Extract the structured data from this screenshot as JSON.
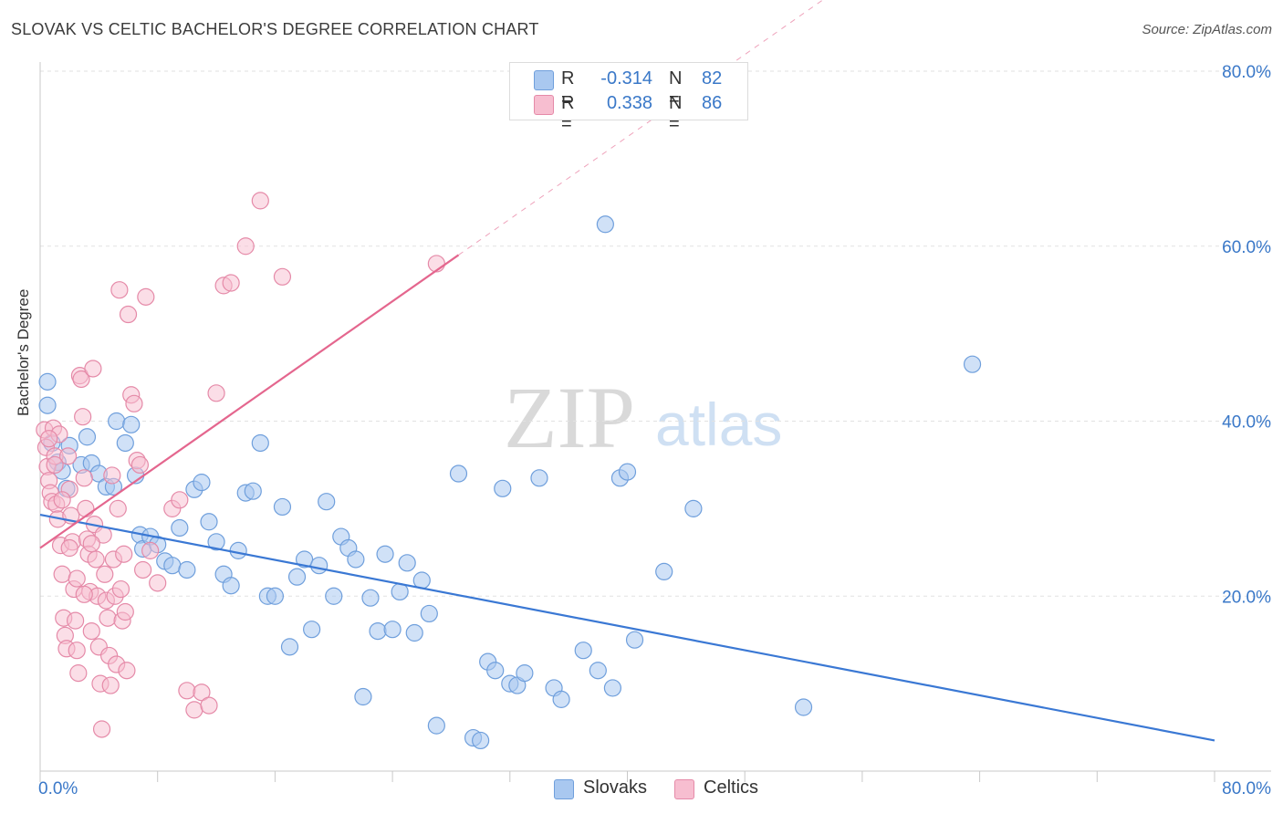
{
  "title": "SLOVAK VS CELTIC BACHELOR'S DEGREE CORRELATION CHART",
  "source": "Source: ZipAtlas.com",
  "watermark": {
    "part1": "ZIP",
    "part2": "atlas"
  },
  "legend": {
    "rows": [
      {
        "r_label": "R =",
        "r_value": "-0.314",
        "n_label": "N =",
        "n_value": "82",
        "color": "#a9c8f0",
        "border": "#6f9fdc"
      },
      {
        "r_label": "R =",
        "r_value": "0.338",
        "n_label": "N =",
        "n_value": "86",
        "color": "#f7bed0",
        "border": "#e58aa8"
      }
    ],
    "bottom": [
      {
        "label": "Slovaks",
        "color": "#a9c8f0",
        "border": "#6f9fdc"
      },
      {
        "label": "Celtics",
        "color": "#f7bed0",
        "border": "#e58aa8"
      }
    ]
  },
  "chart_data": {
    "type": "scatter",
    "ylabel": "Bachelor's Degree",
    "xlabel": "",
    "xlim": [
      0,
      80
    ],
    "ylim": [
      0,
      80
    ],
    "x_ticks": [
      {
        "value": 0,
        "label": "0.0%"
      },
      {
        "value": 80,
        "label": "80.0%"
      }
    ],
    "y_ticks": [
      {
        "value": 20,
        "label": "20.0%"
      },
      {
        "value": 40,
        "label": "40.0%"
      },
      {
        "value": 60,
        "label": "60.0%"
      },
      {
        "value": 80,
        "label": "80.0%"
      }
    ],
    "grid": "horizontal dashed",
    "series": [
      {
        "name": "Slovaks",
        "color": "#3a78d4",
        "fill": "rgba(169,200,240,0.55)",
        "stroke": "#6f9fdc",
        "trend": {
          "x": [
            0,
            80
          ],
          "y": [
            29.3,
            3.5
          ],
          "solid_until": 80
        },
        "points": [
          [
            0.5,
            44.5
          ],
          [
            0.5,
            41.8
          ],
          [
            0.8,
            37.5
          ],
          [
            1.2,
            35.3
          ],
          [
            1.5,
            34.3
          ],
          [
            1.8,
            32.3
          ],
          [
            2.0,
            37.2
          ],
          [
            3.2,
            38.2
          ],
          [
            2.8,
            35.0
          ],
          [
            3.5,
            35.2
          ],
          [
            4.0,
            34.0
          ],
          [
            4.5,
            32.5
          ],
          [
            5.0,
            32.5
          ],
          [
            5.2,
            40.0
          ],
          [
            5.8,
            37.5
          ],
          [
            6.2,
            39.6
          ],
          [
            6.5,
            33.8
          ],
          [
            6.8,
            27.0
          ],
          [
            7.0,
            25.4
          ],
          [
            7.5,
            26.8
          ],
          [
            8.0,
            25.9
          ],
          [
            8.5,
            24.0
          ],
          [
            9.0,
            23.5
          ],
          [
            9.5,
            27.8
          ],
          [
            10.0,
            23.0
          ],
          [
            10.5,
            32.2
          ],
          [
            11.0,
            33.0
          ],
          [
            11.5,
            28.5
          ],
          [
            12.0,
            26.2
          ],
          [
            12.5,
            22.5
          ],
          [
            13.0,
            21.2
          ],
          [
            13.5,
            25.2
          ],
          [
            14.0,
            31.8
          ],
          [
            14.5,
            32.0
          ],
          [
            15.0,
            37.5
          ],
          [
            15.5,
            20.0
          ],
          [
            16.0,
            20.0
          ],
          [
            16.5,
            30.2
          ],
          [
            17.0,
            14.2
          ],
          [
            17.5,
            22.2
          ],
          [
            18.0,
            24.2
          ],
          [
            18.5,
            16.2
          ],
          [
            19.0,
            23.5
          ],
          [
            19.5,
            30.8
          ],
          [
            20.0,
            20.0
          ],
          [
            20.5,
            26.8
          ],
          [
            21.0,
            25.5
          ],
          [
            21.5,
            24.2
          ],
          [
            22.0,
            8.5
          ],
          [
            22.5,
            19.8
          ],
          [
            23.0,
            16.0
          ],
          [
            23.5,
            24.8
          ],
          [
            24.0,
            16.2
          ],
          [
            24.5,
            20.5
          ],
          [
            25.0,
            23.8
          ],
          [
            25.5,
            15.8
          ],
          [
            26.0,
            21.8
          ],
          [
            26.5,
            18.0
          ],
          [
            27.0,
            5.2
          ],
          [
            28.5,
            34.0
          ],
          [
            29.5,
            3.8
          ],
          [
            30.0,
            3.5
          ],
          [
            30.5,
            12.5
          ],
          [
            31.0,
            11.5
          ],
          [
            31.5,
            32.3
          ],
          [
            32.0,
            10.0
          ],
          [
            32.5,
            9.8
          ],
          [
            33.0,
            11.2
          ],
          [
            34.0,
            33.5
          ],
          [
            35.0,
            9.5
          ],
          [
            35.5,
            8.2
          ],
          [
            37.0,
            13.8
          ],
          [
            38.0,
            11.5
          ],
          [
            38.5,
            62.5
          ],
          [
            39.0,
            9.5
          ],
          [
            39.5,
            33.5
          ],
          [
            40.0,
            34.2
          ],
          [
            40.5,
            15.0
          ],
          [
            42.5,
            22.8
          ],
          [
            44.5,
            30.0
          ],
          [
            52.0,
            7.3
          ],
          [
            63.5,
            46.5
          ]
        ]
      },
      {
        "name": "Celtics",
        "color": "#e4668e",
        "fill": "rgba(247,190,208,0.5)",
        "stroke": "#e58aa8",
        "trend": {
          "x": [
            0,
            80
          ],
          "y": [
            25.5,
            119.5
          ],
          "solid_until": 28.5
        },
        "points": [
          [
            0.3,
            39.0
          ],
          [
            0.4,
            37.0
          ],
          [
            0.5,
            34.8
          ],
          [
            0.6,
            33.2
          ],
          [
            0.7,
            31.8
          ],
          [
            0.8,
            30.8
          ],
          [
            0.9,
            39.2
          ],
          [
            1.0,
            36.0
          ],
          [
            1.1,
            30.5
          ],
          [
            1.2,
            28.8
          ],
          [
            1.3,
            38.5
          ],
          [
            1.4,
            25.8
          ],
          [
            1.5,
            22.5
          ],
          [
            1.6,
            17.5
          ],
          [
            1.7,
            15.5
          ],
          [
            1.8,
            14.0
          ],
          [
            1.9,
            36.0
          ],
          [
            2.0,
            32.2
          ],
          [
            2.1,
            29.2
          ],
          [
            2.2,
            26.2
          ],
          [
            2.3,
            20.8
          ],
          [
            2.4,
            17.2
          ],
          [
            2.5,
            13.8
          ],
          [
            2.6,
            11.2
          ],
          [
            2.7,
            45.2
          ],
          [
            2.8,
            44.8
          ],
          [
            2.9,
            40.5
          ],
          [
            3.0,
            33.5
          ],
          [
            3.1,
            30.0
          ],
          [
            3.2,
            26.5
          ],
          [
            3.3,
            24.8
          ],
          [
            3.4,
            20.5
          ],
          [
            3.5,
            16.0
          ],
          [
            3.6,
            46.0
          ],
          [
            3.7,
            28.2
          ],
          [
            3.8,
            24.2
          ],
          [
            3.9,
            20.0
          ],
          [
            4.0,
            14.2
          ],
          [
            4.1,
            10.0
          ],
          [
            4.2,
            4.8
          ],
          [
            4.3,
            27.0
          ],
          [
            4.4,
            22.5
          ],
          [
            4.5,
            19.5
          ],
          [
            4.6,
            17.5
          ],
          [
            4.7,
            13.2
          ],
          [
            4.8,
            9.8
          ],
          [
            4.9,
            33.8
          ],
          [
            5.0,
            24.2
          ],
          [
            5.1,
            20.0
          ],
          [
            5.2,
            12.2
          ],
          [
            5.3,
            30.0
          ],
          [
            5.4,
            55.0
          ],
          [
            5.5,
            20.8
          ],
          [
            5.6,
            17.2
          ],
          [
            5.7,
            24.8
          ],
          [
            5.8,
            18.2
          ],
          [
            5.9,
            11.5
          ],
          [
            6.0,
            52.2
          ],
          [
            6.2,
            43.0
          ],
          [
            6.4,
            42.0
          ],
          [
            6.6,
            35.5
          ],
          [
            6.8,
            35.0
          ],
          [
            7.0,
            23.0
          ],
          [
            7.2,
            54.2
          ],
          [
            7.5,
            25.2
          ],
          [
            8.0,
            21.5
          ],
          [
            9.0,
            30.0
          ],
          [
            9.5,
            31.0
          ],
          [
            10.0,
            9.2
          ],
          [
            10.5,
            7.0
          ],
          [
            11.0,
            9.0
          ],
          [
            11.5,
            7.5
          ],
          [
            12.0,
            43.2
          ],
          [
            12.5,
            55.5
          ],
          [
            13.0,
            55.8
          ],
          [
            14.0,
            60.0
          ],
          [
            15.0,
            65.2
          ],
          [
            16.5,
            56.5
          ],
          [
            27.0,
            58.0
          ],
          [
            0.6,
            38.0
          ],
          [
            1.0,
            35.0
          ],
          [
            1.5,
            31.0
          ],
          [
            2.0,
            25.5
          ],
          [
            2.5,
            22.0
          ],
          [
            3.0,
            20.2
          ],
          [
            3.5,
            26.0
          ]
        ]
      }
    ]
  }
}
